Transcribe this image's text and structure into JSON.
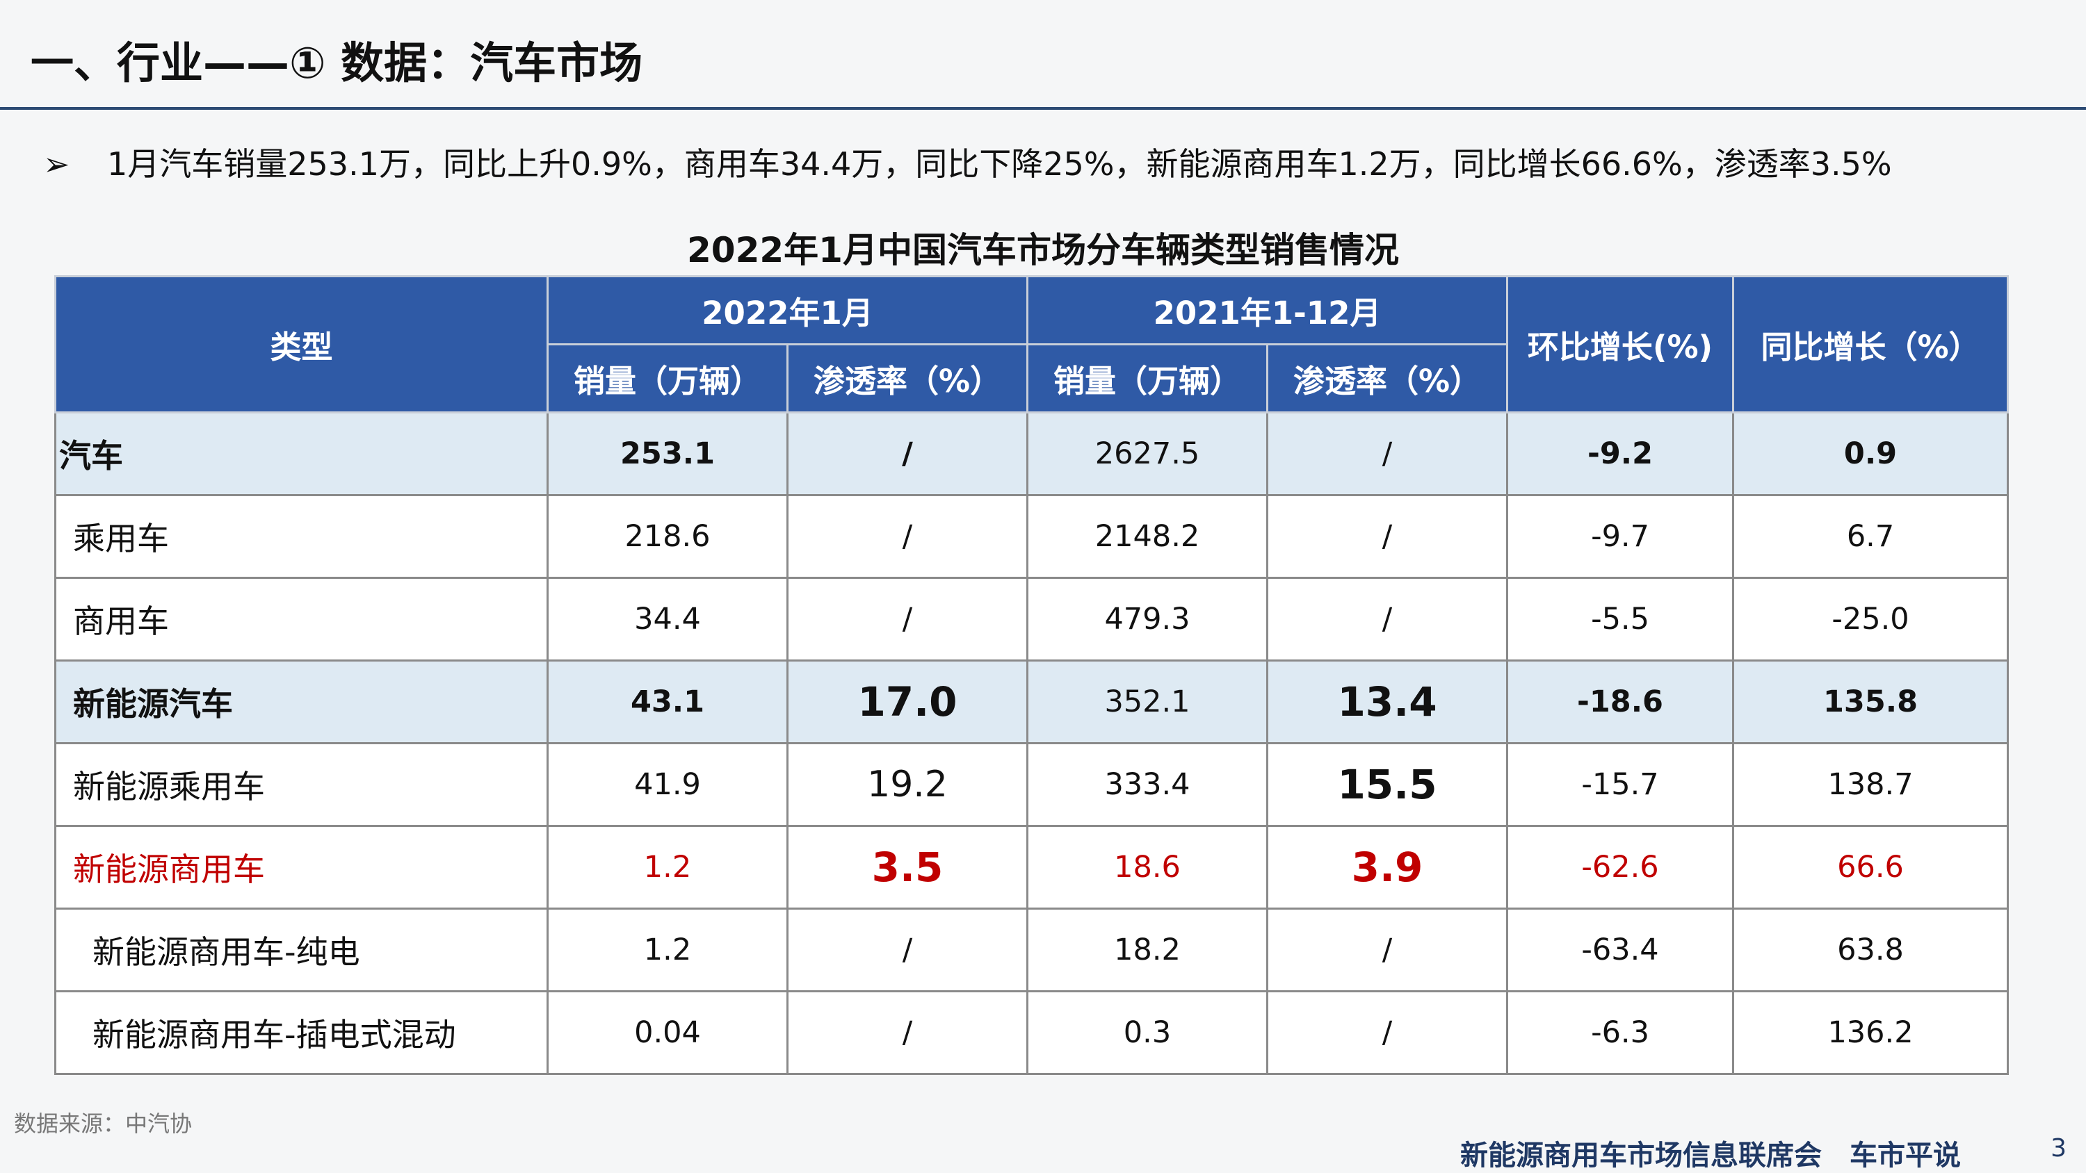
{
  "header": {
    "title": "一、行业——① 数据：汽车市场"
  },
  "bullet": {
    "marker": "➢",
    "text": "1月汽车销量253.1万，同比上升0.9%，商用车34.4万，同比下降25%，新能源商用车1.2万，同比增长66.6%，渗透率3.5%"
  },
  "table": {
    "title": "2022年1月中国汽车市场分车辆类型销售情况",
    "headers": {
      "type": "类型",
      "period1": "2022年1月",
      "period2": "2021年1-12月",
      "sales": "销量（万辆）",
      "penetration": "渗透率（%）",
      "mom": "环比增长(%)",
      "yoy": "同比增长（%）"
    },
    "rows": [
      {
        "name": "汽车",
        "s1": "253.1",
        "p1": "/",
        "s2": "2627.5",
        "p2": "/",
        "mom": "-9.2",
        "yoy": "0.9"
      },
      {
        "name": "乘用车",
        "s1": "218.6",
        "p1": "/",
        "s2": "2148.2",
        "p2": "/",
        "mom": "-9.7",
        "yoy": "6.7"
      },
      {
        "name": "商用车",
        "s1": "34.4",
        "p1": "/",
        "s2": "479.3",
        "p2": "/",
        "mom": "-5.5",
        "yoy": "-25.0"
      },
      {
        "name": "新能源汽车",
        "s1": "43.1",
        "p1": "17.0",
        "s2": "352.1",
        "p2": "13.4",
        "mom": "-18.6",
        "yoy": "135.8"
      },
      {
        "name": "新能源乘用车",
        "s1": "41.9",
        "p1": "19.2",
        "s2": "333.4",
        "p2": "15.5",
        "mom": "-15.7",
        "yoy": "138.7"
      },
      {
        "name": "新能源商用车",
        "s1": "1.2",
        "p1": "3.5",
        "s2": "18.6",
        "p2": "3.9",
        "mom": "-62.6",
        "yoy": "66.6"
      },
      {
        "name": "新能源商用车-纯电",
        "s1": "1.2",
        "p1": "/",
        "s2": "18.2",
        "p2": "/",
        "mom": "-63.4",
        "yoy": "63.8"
      },
      {
        "name": "新能源商用车-插电式混动",
        "s1": "0.04",
        "p1": "/",
        "s2": "0.3",
        "p2": "/",
        "mom": "-6.3",
        "yoy": "136.2"
      }
    ]
  },
  "source": "数据来源：中汽协",
  "footer": {
    "org": "新能源商用车市场信息联席会　车市平说",
    "page": "3"
  },
  "colors": {
    "header_bg": "#2f5aa6",
    "highlight_row": "#deeaf3",
    "accent_red": "#c00000",
    "rule": "#2c4a73"
  }
}
